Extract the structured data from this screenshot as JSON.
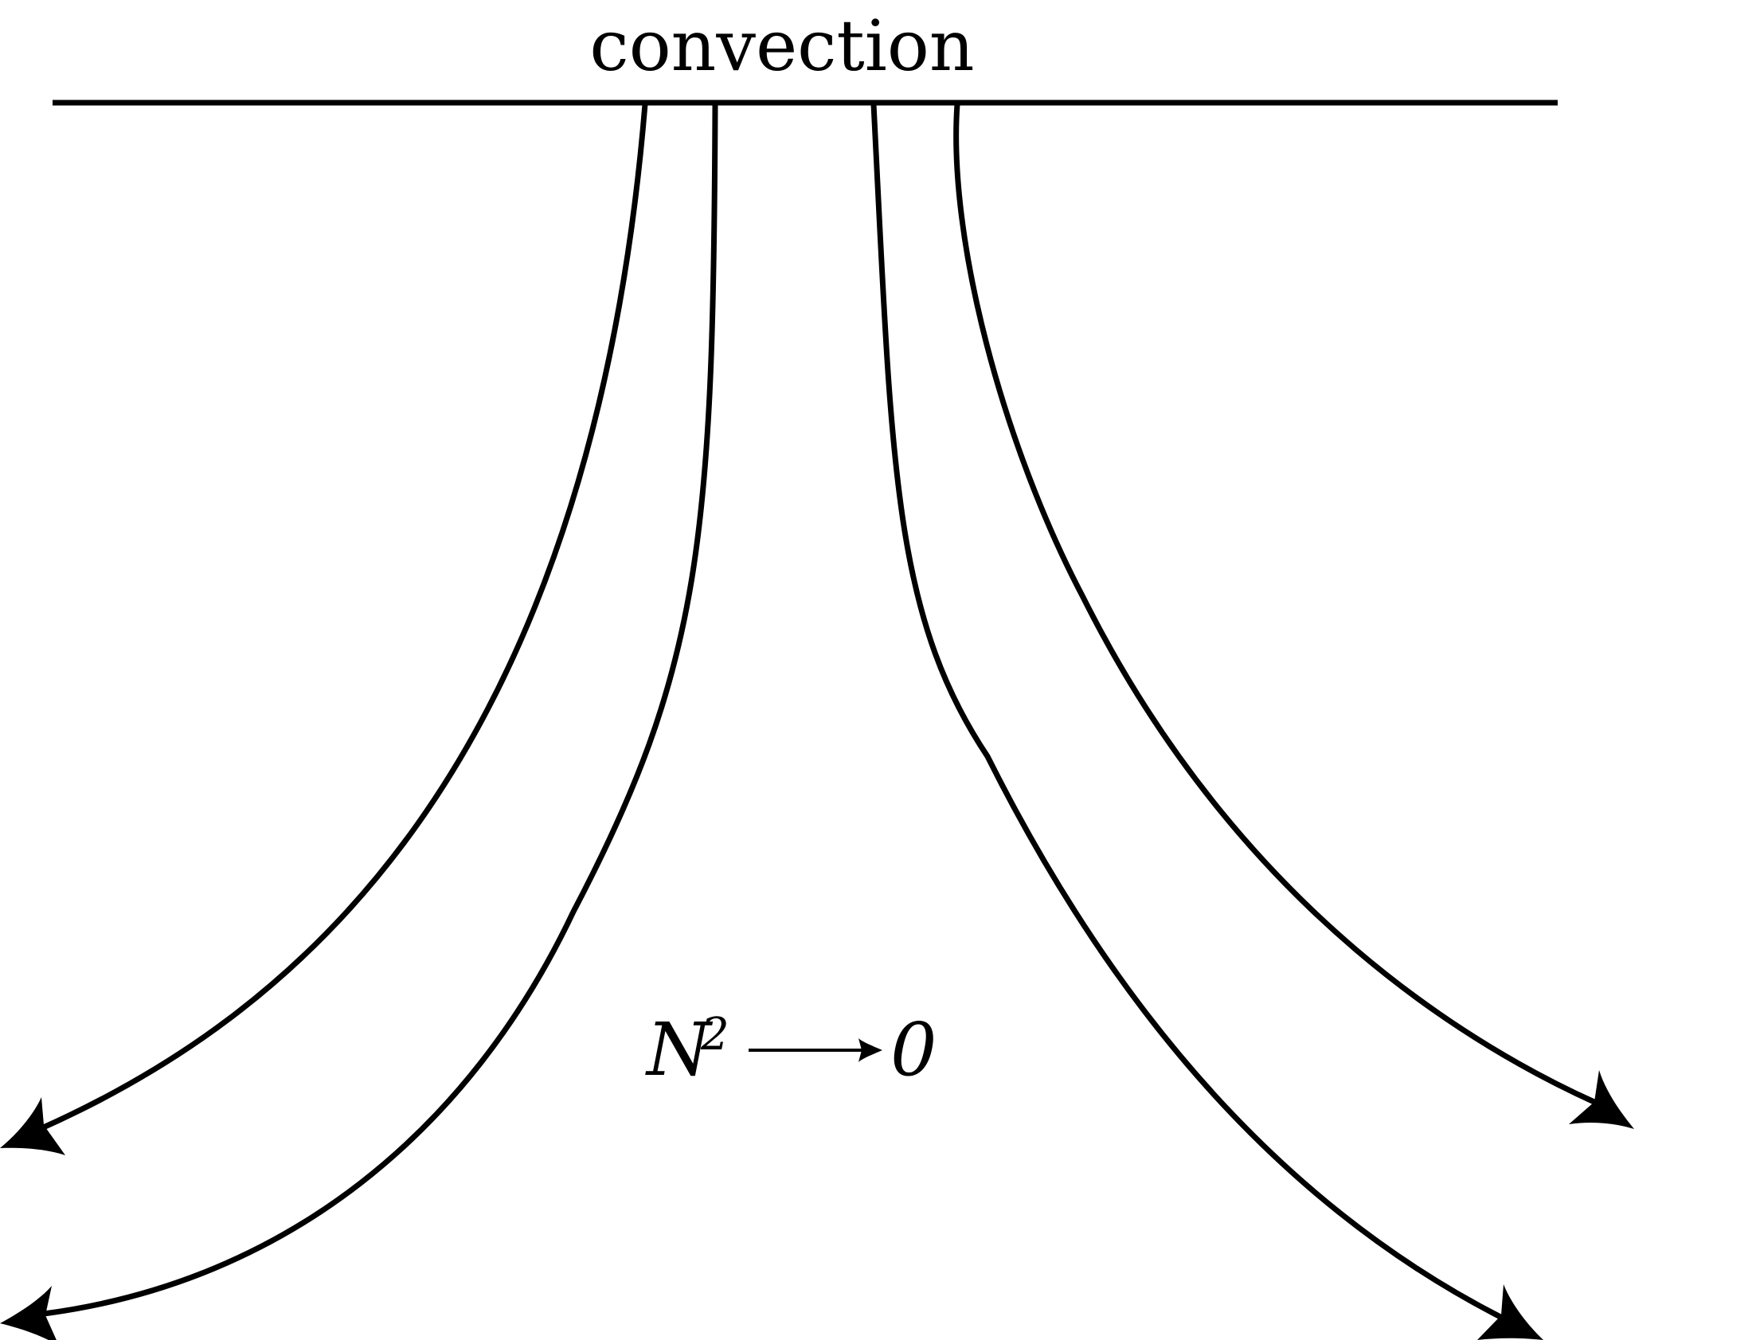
{
  "diagram": {
    "label_top": "convection",
    "formula": {
      "variable": "N",
      "superscript": "2",
      "limit": "0"
    },
    "flow_lines": [
      {
        "name": "outer-left-flow-line",
        "direction": "down-left"
      },
      {
        "name": "inner-left-flow-line",
        "direction": "down-left"
      },
      {
        "name": "inner-right-flow-line",
        "direction": "down-right"
      },
      {
        "name": "outer-right-flow-line",
        "direction": "down-right"
      }
    ],
    "colors": {
      "stroke": "#000000",
      "background": "#ffffff"
    }
  }
}
